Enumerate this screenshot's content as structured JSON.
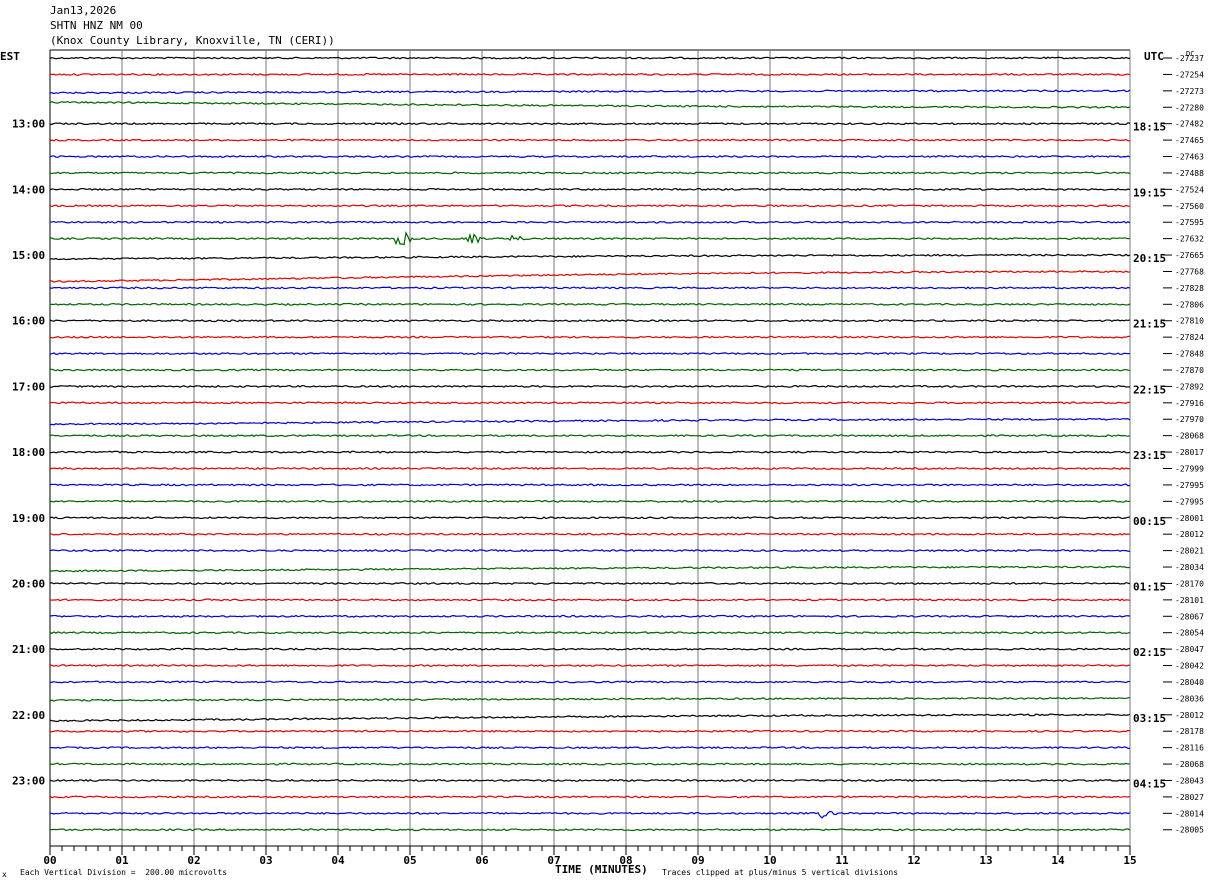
{
  "header": {
    "date": "Jan13,2026",
    "station": "SHTN HNZ NM 00",
    "location": "(Knox County Library, Knoxville, TN (CERI))"
  },
  "footer": {
    "scale_note": "Each Vertical Division =  200.00 microvolts",
    "clip_note": "Traces clipped at plus/minus 5 vertical divisions",
    "corner_mark": "x"
  },
  "chart_data": {
    "type": "line",
    "title": "",
    "xlabel": "TIME (MINUTES)",
    "left_tz": "EST",
    "right_tz": "UTC",
    "dc_label": "DC",
    "xlim": [
      0,
      15
    ],
    "x_ticks": [
      "00",
      "01",
      "02",
      "03",
      "04",
      "05",
      "06",
      "07",
      "08",
      "09",
      "10",
      "11",
      "12",
      "13",
      "14",
      "15"
    ],
    "grid_vertical": true,
    "trace_colors": [
      "#000000",
      "#e00000",
      "#0000d0",
      "#006400"
    ],
    "left_labels": [
      "13:00",
      "14:00",
      "15:00",
      "16:00",
      "17:00",
      "18:00",
      "19:00",
      "20:00",
      "21:00",
      "22:00",
      "23:00"
    ],
    "right_labels": [
      "18:15",
      "19:15",
      "20:15",
      "21:15",
      "22:15",
      "23:15",
      "00:15",
      "01:15",
      "02:15",
      "03:15",
      "04:15"
    ],
    "dc_offsets": [
      "-27237",
      "-27254",
      "-27273",
      "-27280",
      "-27482",
      "-27465",
      "-27463",
      "-27488",
      "-27524",
      "-27560",
      "-27595",
      "-27632",
      "-27665",
      "-27768",
      "-27828",
      "-27806",
      "-27810",
      "-27824",
      "-27848",
      "-27870",
      "-27892",
      "-27916",
      "-27970",
      "-28068",
      "-28017",
      "-27999",
      "-27995",
      "-27995",
      "-28001",
      "-28012",
      "-28021",
      "-28034",
      "-28170",
      "-28101",
      "-28067",
      "-28054",
      "-28047",
      "-28042",
      "-28040",
      "-28036",
      "-28012",
      "-28178",
      "-28116",
      "-28068",
      "-28043",
      "-28027",
      "-28014",
      "-28005"
    ]
  }
}
